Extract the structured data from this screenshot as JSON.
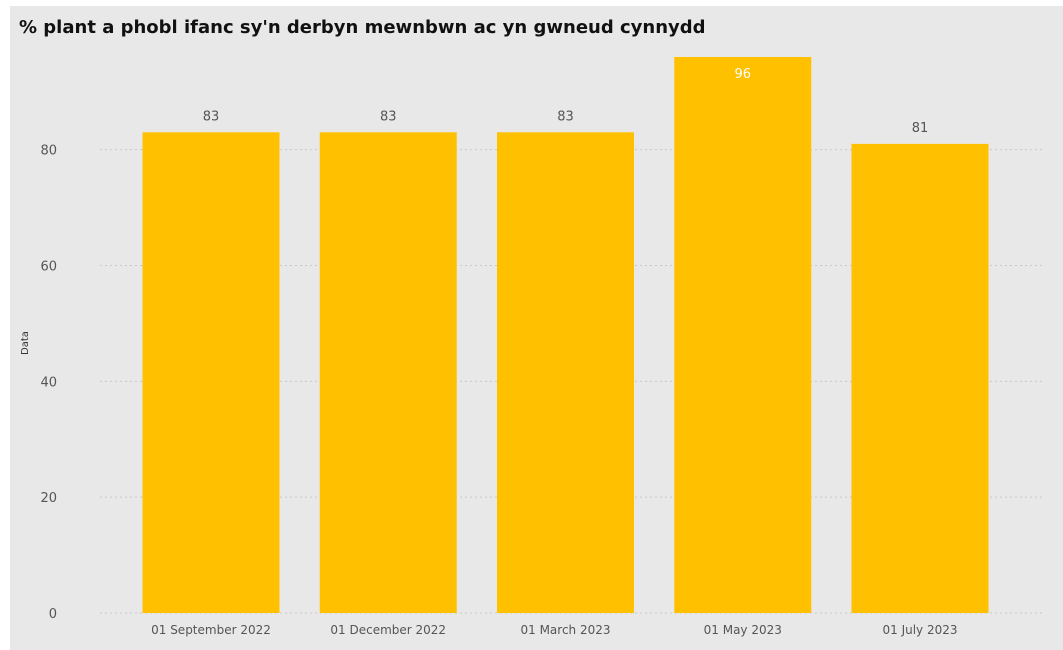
{
  "chart_data": {
    "type": "bar",
    "title": "% plant a phobl ifanc sy'n derbyn mewnbwn ac yn gwneud cynnydd",
    "ylabel": "Data",
    "xlabel": "",
    "categories": [
      "01 September 2022",
      "01 December 2022",
      "01 March 2023",
      "01 May 2023",
      "01 July 2023"
    ],
    "values": [
      83,
      83,
      83,
      96,
      81
    ],
    "value_labels": [
      "83",
      "83",
      "83",
      "96",
      "81"
    ],
    "y_ticks": [
      "0",
      "20",
      "40",
      "60",
      "80"
    ],
    "y_tick_values": [
      0,
      20,
      40,
      60,
      80
    ],
    "ylim": [
      0,
      96
    ],
    "grid": "horizontal dotted",
    "legend": "none",
    "colors": {
      "bar": "#FFC000",
      "background": "#E8E8E8",
      "gridline": "#C8C8C8",
      "label_outside": "#555555",
      "label_inside": "#FFFFFF",
      "axis_text": "#555555"
    }
  }
}
